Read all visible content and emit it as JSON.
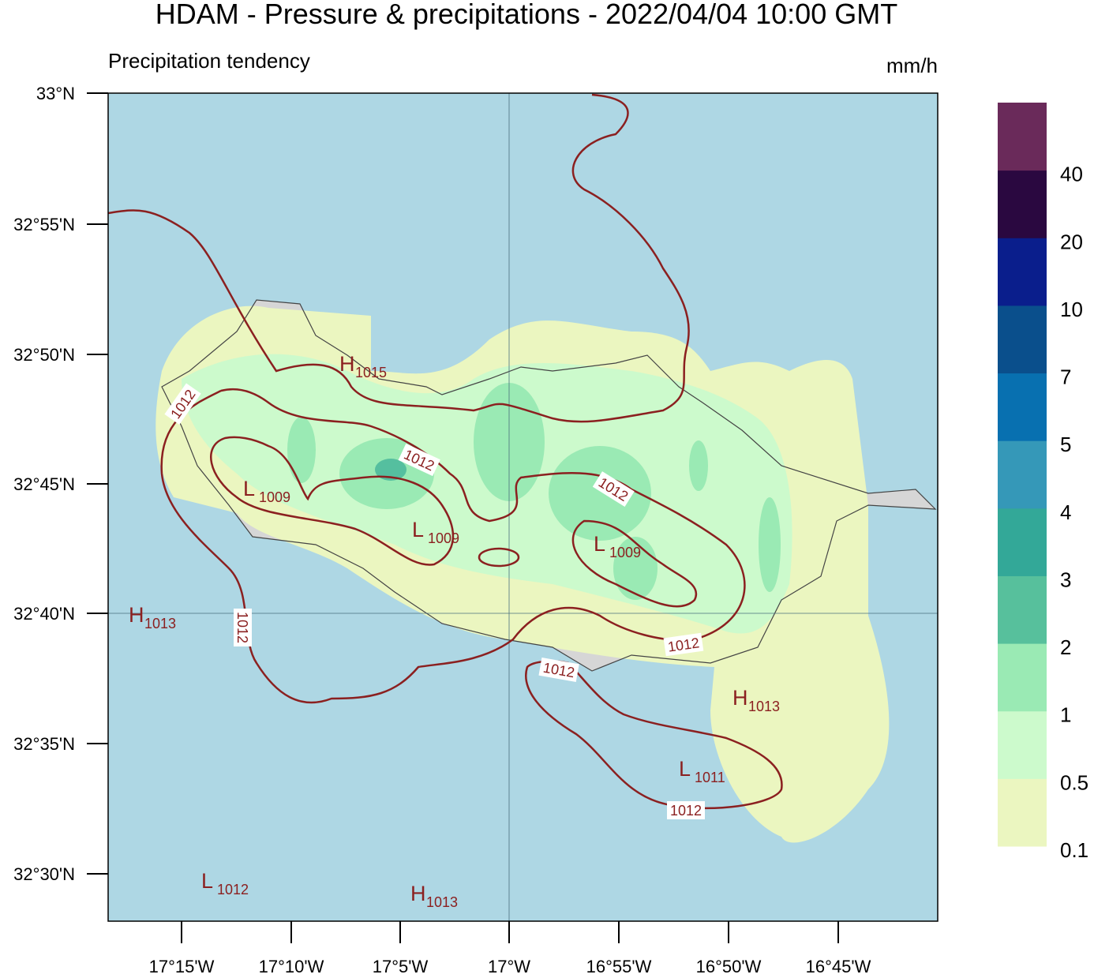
{
  "header": {
    "title": "HDAM - Pressure & precipitations  -  2022/04/04  10:00 GMT",
    "subtitle": "Precipitation tendency",
    "unit": "mm/h"
  },
  "map": {
    "lat_labels": [
      "33°N",
      "32°55'N",
      "32°50'N",
      "32°45'N",
      "32°40'N",
      "32°35'N",
      "32°30'N"
    ],
    "lon_labels": [
      "17°15'W",
      "17°10'W",
      "17°5'W",
      "17°W",
      "16°55'W",
      "16°50'W",
      "16°45'W"
    ],
    "pressure_centers": [
      {
        "letter": "H",
        "value": "1015"
      },
      {
        "letter": "L",
        "value": "1009"
      },
      {
        "letter": "L",
        "value": "1009"
      },
      {
        "letter": "L",
        "value": "1009"
      },
      {
        "letter": "H",
        "value": "1013"
      },
      {
        "letter": "H",
        "value": "1013"
      },
      {
        "letter": "L",
        "value": "1011"
      },
      {
        "letter": "L",
        "value": "1012"
      },
      {
        "letter": "H",
        "value": "1013"
      }
    ],
    "contour_labels": [
      "1012",
      "1012",
      "1012",
      "1012",
      "1012",
      "1012",
      "1012"
    ]
  },
  "colorbar": {
    "levels": [
      0.1,
      0.5,
      1,
      2,
      3,
      4,
      5,
      7,
      10,
      20,
      40
    ],
    "colors": [
      "#ebf6c0",
      "#ccfacc",
      "#9aeab4",
      "#57c09c",
      "#33a898",
      "#3598b8",
      "#0870b0",
      "#0a4f8c",
      "#0a1e8c",
      "#2a0840",
      "#6a2a5a"
    ]
  }
}
